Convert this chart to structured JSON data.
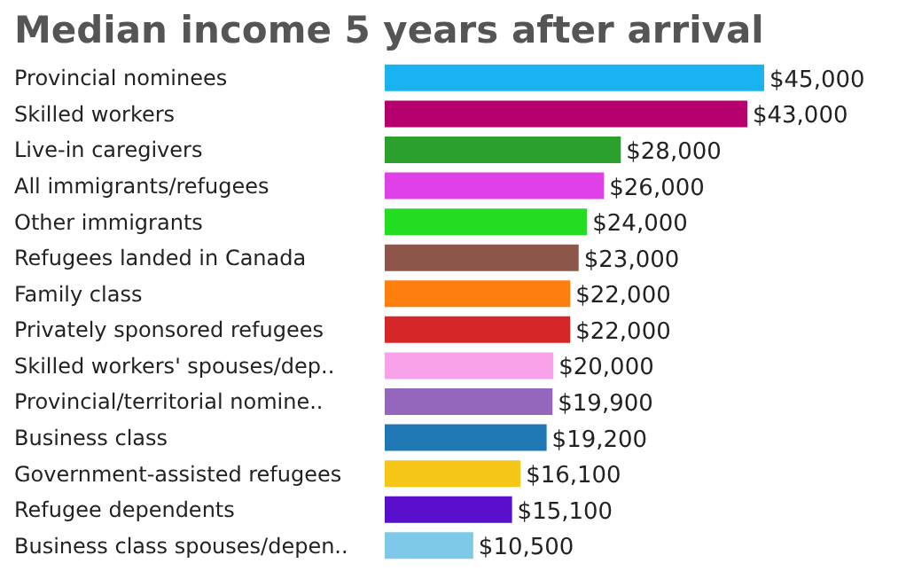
{
  "chart_data": {
    "type": "bar",
    "orientation": "horizontal",
    "title": "Median income 5 years after arrival",
    "categories": [
      "Provincial nominees",
      "Skilled workers",
      "Live-in caregivers",
      "All immigrants/refugees",
      "Other immigrants",
      "Refugees landed in Canada",
      "Family class",
      "Privately sponsored refugees",
      "Skilled workers' spouses/dep..",
      "Provincial/territorial nomine..",
      "Business class",
      "Government-assisted refugees",
      "Refugee dependents",
      "Business class spouses/depen.."
    ],
    "values": [
      45000,
      43000,
      28000,
      26000,
      24000,
      23000,
      22000,
      22000,
      20000,
      19900,
      19200,
      16100,
      15100,
      10500
    ],
    "value_labels": [
      "$45,000",
      "$43,000",
      "$28,000",
      "$26,000",
      "$24,000",
      "$23,000",
      "$22,000",
      "$22,000",
      "$20,000",
      "$19,900",
      "$19,200",
      "$16,100",
      "$15,100",
      "$10,500"
    ],
    "colors": [
      "#1ab2f0",
      "#b5006e",
      "#2ca02c",
      "#e040e8",
      "#22dd22",
      "#8c564b",
      "#ff7f0e",
      "#d62728",
      "#f7a1e8",
      "#9467bd",
      "#1f77b4",
      "#f5c518",
      "#5a0fcc",
      "#7ec8e8"
    ],
    "grid": false,
    "legend": false
  }
}
